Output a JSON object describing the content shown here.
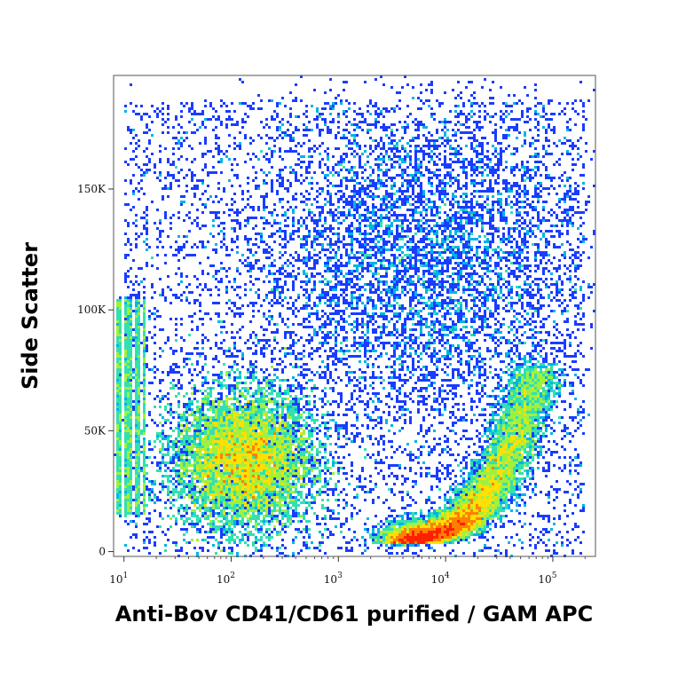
{
  "chart_data": {
    "type": "scatter",
    "title": "",
    "xlabel": "Anti-Bov CD41/CD61 purified / GAM APC",
    "ylabel": "Side Scatter",
    "x_scale": "log",
    "y_scale": "linear",
    "xlim": [
      8,
      250000
    ],
    "ylim": [
      -2000,
      197000
    ],
    "x_ticks": [
      {
        "value": 10,
        "base": "10",
        "exp": "1"
      },
      {
        "value": 100,
        "base": "10",
        "exp": "2"
      },
      {
        "value": 1000,
        "base": "10",
        "exp": "3"
      },
      {
        "value": 10000,
        "base": "10",
        "exp": "4"
      },
      {
        "value": 100000,
        "base": "10",
        "exp": "5"
      }
    ],
    "y_ticks": [
      {
        "value": 0,
        "label": "0"
      },
      {
        "value": 50000,
        "label": "50K"
      },
      {
        "value": 100000,
        "label": "100K"
      },
      {
        "value": 150000,
        "label": "150K"
      }
    ],
    "grid": false,
    "legend": "none",
    "colormap": [
      "#0000cc",
      "#1a3cff",
      "#00b4e6",
      "#33e0b0",
      "#a0f040",
      "#ffe000",
      "#ff8000",
      "#ff2000"
    ],
    "populations": [
      {
        "center_x": 130,
        "center_y": 38000,
        "spread_log_x": 0.32,
        "spread_y": 14000,
        "density": "high"
      },
      {
        "center_x": 9000,
        "center_y": 8000,
        "spread_log_x": 0.25,
        "spread_y": 4000,
        "density": "high"
      },
      {
        "center_x": 6000,
        "center_y": 120000,
        "spread_log_x": 0.8,
        "spread_y": 35000,
        "density": "low"
      }
    ]
  }
}
